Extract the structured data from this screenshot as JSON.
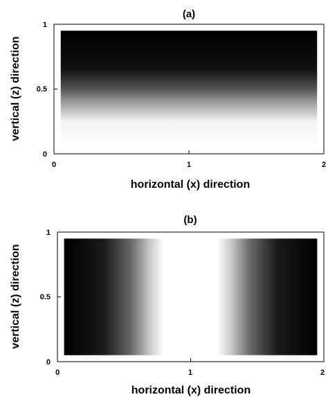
{
  "chart_data": [
    {
      "type": "heatmap",
      "title": "(a)",
      "xlabel": "horizontal (x) direction",
      "ylabel": "vertical (z) direction",
      "xlim": [
        0,
        2
      ],
      "ylim": [
        0,
        1
      ],
      "x_ticks": [
        "0",
        "1",
        "2"
      ],
      "y_ticks": [
        "0",
        "0.5",
        "1"
      ],
      "filled_region": {
        "x": [
          0.05,
          1.95
        ],
        "z": [
          0.05,
          0.95
        ]
      },
      "gradient_axis": "z",
      "color_stops": [
        {
          "pos": 0.05,
          "color": "#ffffff"
        },
        {
          "pos": 0.25,
          "color": "#f2f2f2"
        },
        {
          "pos": 0.4,
          "color": "#9a9a9a"
        },
        {
          "pos": 0.5,
          "color": "#555555"
        },
        {
          "pos": 0.65,
          "color": "#111111"
        },
        {
          "pos": 0.95,
          "color": "#000000"
        }
      ],
      "grid": false
    },
    {
      "type": "heatmap",
      "title": "(b)",
      "xlabel": "horizontal (x) direction",
      "ylabel": "vertical (z) direction",
      "xlim": [
        0,
        2
      ],
      "ylim": [
        0,
        1
      ],
      "x_ticks": [
        "0",
        "1",
        "2"
      ],
      "y_ticks": [
        "0",
        "0.5",
        "1"
      ],
      "filled_region": {
        "x": [
          0.05,
          1.95
        ],
        "z": [
          0.05,
          0.95
        ]
      },
      "gradient_axis": "x",
      "color_stops": [
        {
          "pos": 0.05,
          "color": "#000000"
        },
        {
          "pos": 0.35,
          "color": "#1a1a1a"
        },
        {
          "pos": 0.55,
          "color": "#666666"
        },
        {
          "pos": 0.7,
          "color": "#cccccc"
        },
        {
          "pos": 0.8,
          "color": "#ffffff"
        },
        {
          "pos": 1.2,
          "color": "#ffffff"
        },
        {
          "pos": 1.3,
          "color": "#cccccc"
        },
        {
          "pos": 1.45,
          "color": "#666666"
        },
        {
          "pos": 1.65,
          "color": "#1a1a1a"
        },
        {
          "pos": 1.95,
          "color": "#000000"
        }
      ],
      "grid": false
    }
  ]
}
